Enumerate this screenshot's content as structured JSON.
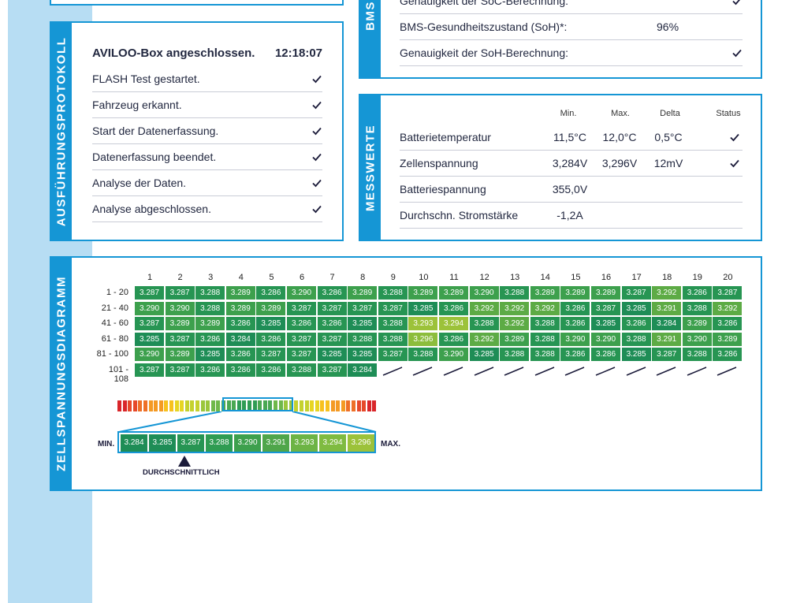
{
  "bms": {
    "tab": "BMS",
    "rows": [
      {
        "label": "Genauigkeit der SoC-Berechnung:",
        "value": "",
        "check": true
      },
      {
        "label": "BMS-Gesundheitszustand (SoH)*:",
        "value": "96%",
        "check": false
      },
      {
        "label": "Genauigkeit der SoH-Berechnung:",
        "value": "",
        "check": true
      }
    ]
  },
  "protokoll": {
    "tab": "AUSFÜHRUNGSPROTOKOLL",
    "title": "AVILOO-Box angeschlossen.",
    "time": "12:18:07",
    "rows": [
      "FLASH Test gestartet.",
      "Fahrzeug erkannt.",
      "Start der Datenerfassung.",
      "Datenerfassung beendet.",
      "Analyse der Daten.",
      "Analyse abgeschlossen."
    ]
  },
  "messwerte": {
    "tab": "MESSWERTE",
    "headers": {
      "min": "Min.",
      "max": "Max.",
      "delta": "Delta",
      "status": "Status"
    },
    "rows": [
      {
        "label": "Batterietemperatur",
        "min": "11,5°C",
        "max": "12,0°C",
        "delta": "0,5°C",
        "check": true
      },
      {
        "label": "Zellenspannung",
        "min": "3,284V",
        "max": "3,296V",
        "delta": "12mV",
        "check": true
      },
      {
        "label": "Batteriespannung",
        "min": "355,0V",
        "max": "",
        "delta": "",
        "check": false
      },
      {
        "label": "Durchschn. Stromstärke",
        "min": "-1,2A",
        "max": "",
        "delta": "",
        "check": false
      }
    ]
  },
  "diagramm": {
    "tab": "ZELLSPANNUNGSDIAGRAMM",
    "columns": [
      "1",
      "2",
      "3",
      "4",
      "5",
      "6",
      "7",
      "8",
      "9",
      "10",
      "11",
      "12",
      "13",
      "14",
      "15",
      "16",
      "17",
      "18",
      "19",
      "20"
    ],
    "row_labels": [
      "1 - 20",
      "21 - 40",
      "41 - 60",
      "61 - 80",
      "81 - 100",
      "101 - 108"
    ],
    "cells": [
      [
        "3.287",
        "3.287",
        "3.288",
        "3.289",
        "3.286",
        "3.290",
        "3.286",
        "3.289",
        "3.288",
        "3.289",
        "3.289",
        "3.290",
        "3.288",
        "3.289",
        "3.289",
        "3.289",
        "3.287",
        "3.292",
        "3.286",
        "3.287"
      ],
      [
        "3.290",
        "3.290",
        "3.288",
        "3.289",
        "3.289",
        "3.287",
        "3.287",
        "3.287",
        "3.287",
        "3.285",
        "3.286",
        "3.292",
        "3.292",
        "3.292",
        "3.286",
        "3.287",
        "3.285",
        "3.291",
        "3.288",
        "3.292"
      ],
      [
        "3.287",
        "3.289",
        "3.289",
        "3.286",
        "3.285",
        "3.286",
        "3.286",
        "3.285",
        "3.288",
        "3.293",
        "3.294",
        "3.288",
        "3.292",
        "3.288",
        "3.286",
        "3.285",
        "3.286",
        "3.284",
        "3.289",
        "3.286"
      ],
      [
        "3.285",
        "3.287",
        "3.286",
        "3.284",
        "3.286",
        "3.287",
        "3.287",
        "3.288",
        "3.288",
        "3.296",
        "3.286",
        "3.292",
        "3.289",
        "3.288",
        "3.290",
        "3.290",
        "3.288",
        "3.291",
        "3.290",
        "3.289"
      ],
      [
        "3.290",
        "3.289",
        "3.285",
        "3.286",
        "3.287",
        "3.287",
        "3.285",
        "3.285",
        "3.287",
        "3.288",
        "3.290",
        "3.285",
        "3.288",
        "3.288",
        "3.286",
        "3.286",
        "3.285",
        "3.287",
        "3.288",
        "3.286"
      ],
      [
        "3.287",
        "3.287",
        "3.286",
        "3.286",
        "3.286",
        "3.288",
        "3.287",
        "3.284"
      ]
    ],
    "scale_min_label": "MIN.",
    "scale_max_label": "MAX.",
    "scale_values": [
      "3.284",
      "3.285",
      "3.287",
      "3.288",
      "3.290",
      "3.291",
      "3.293",
      "3.294",
      "3.296"
    ],
    "average_label": "DURCHSCHNITTLICH",
    "colors": {
      "min": "#1f8f5a",
      "mid": "#3fa448",
      "high": "#a6c43a",
      "gradient": [
        "#d9262a",
        "#e6492a",
        "#ee7027",
        "#f49a24",
        "#f7c11f",
        "#e7d523",
        "#c5d12e",
        "#9bc63c",
        "#6fb84b",
        "#4aa853",
        "#2f9c55",
        "#2f9c55",
        "#4aa853",
        "#6fb84b",
        "#9bc63c",
        "#c5d12e",
        "#e7d523",
        "#f7c11f",
        "#f49a24",
        "#ee7027",
        "#e6492a",
        "#d9262a"
      ]
    }
  },
  "accent": "#1596d5"
}
